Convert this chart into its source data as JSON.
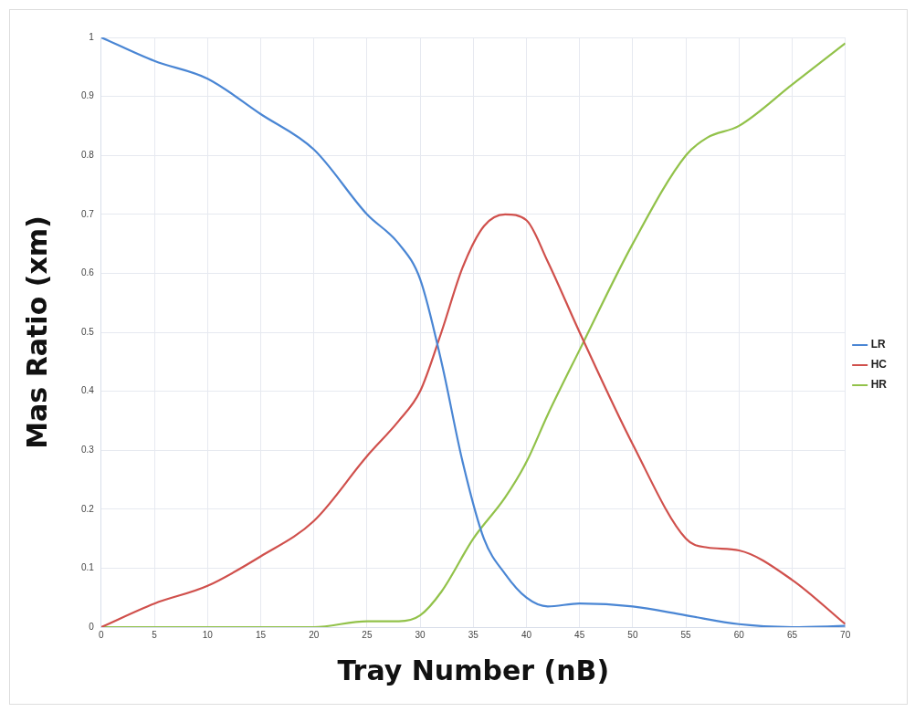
{
  "chart_data": {
    "type": "line",
    "xlabel": "Tray Number (nB)",
    "ylabel": "Mas Ratio (xm)",
    "xlim": [
      0,
      70
    ],
    "xticks": [
      0,
      5,
      10,
      15,
      20,
      25,
      30,
      35,
      40,
      45,
      50,
      55,
      60,
      65,
      70
    ],
    "ylim": [
      0,
      1
    ],
    "yticks": [
      0,
      0.1,
      0.2,
      0.3,
      0.4,
      0.5,
      0.6,
      0.7,
      0.8,
      0.9,
      1
    ],
    "grid": true,
    "legend": "right",
    "marker": "none",
    "line_style": "solid",
    "series": [
      {
        "name": "LR",
        "color": "#4a86d4",
        "x": [
          0,
          5,
          10,
          15,
          20,
          25,
          28,
          30,
          32,
          34,
          36,
          38,
          40,
          42,
          45,
          50,
          55,
          60,
          65,
          70
        ],
        "values": [
          1,
          0.96,
          0.93,
          0.87,
          0.81,
          0.7,
          0.65,
          0.59,
          0.45,
          0.28,
          0.15,
          0.09,
          0.05,
          0.035,
          0.04,
          0.035,
          0.02,
          0.005,
          0,
          0.002
        ]
      },
      {
        "name": "HC",
        "color": "#d0504c",
        "x": [
          0,
          5,
          10,
          15,
          20,
          25,
          28,
          30,
          32,
          34,
          36,
          38,
          40,
          42,
          45,
          50,
          55,
          57,
          60,
          65,
          70
        ],
        "values": [
          0,
          0.04,
          0.07,
          0.12,
          0.18,
          0.29,
          0.35,
          0.4,
          0.5,
          0.61,
          0.68,
          0.7,
          0.69,
          0.62,
          0.5,
          0.31,
          0.15,
          0.135,
          0.13,
          0.08,
          0.005
        ]
      },
      {
        "name": "HR",
        "color": "#92c24a",
        "x": [
          0,
          10,
          20,
          25,
          28,
          30,
          32,
          35,
          38,
          40,
          42,
          45,
          50,
          55,
          57,
          60,
          65,
          70
        ],
        "values": [
          0,
          0,
          0,
          0.01,
          0.01,
          0.02,
          0.06,
          0.15,
          0.22,
          0.28,
          0.36,
          0.47,
          0.65,
          0.8,
          0.83,
          0.85,
          0.92,
          0.99
        ]
      }
    ]
  }
}
